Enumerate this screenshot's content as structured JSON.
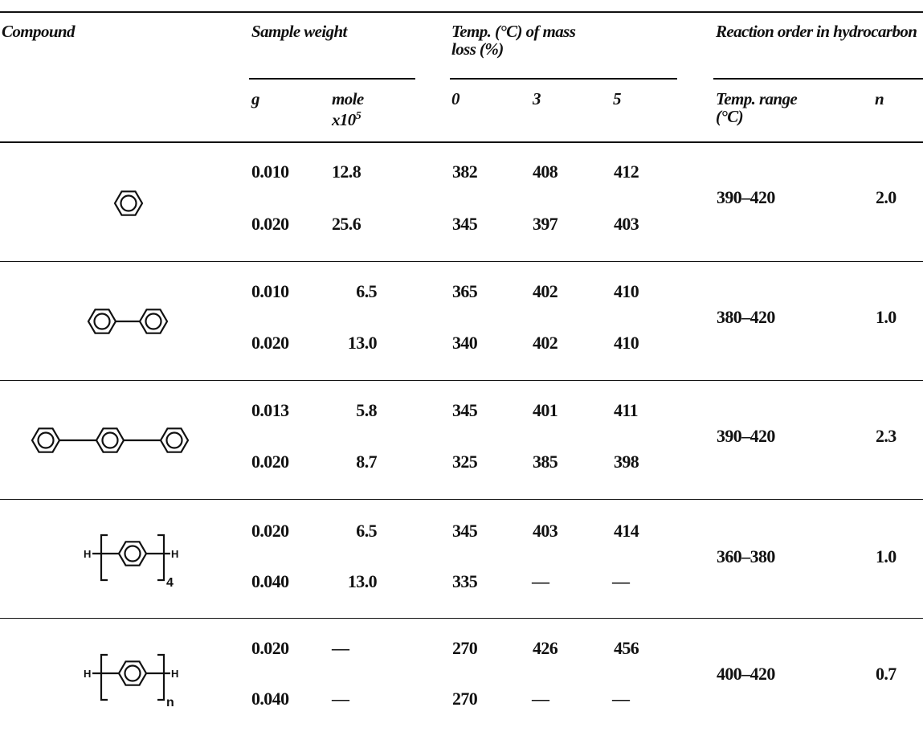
{
  "table": {
    "headers": {
      "compound": "Compound",
      "sample_weight": "Sample weight",
      "temp_mass_loss": "Temp. (°C) of mass loss (%)",
      "reaction_order": "Reaction order in hydrocarbon"
    },
    "subheaders": {
      "g": "g",
      "mole": "mole",
      "mole_scale": "x10",
      "mole_exp": "5",
      "loss_0": "0",
      "loss_3": "3",
      "loss_5": "5",
      "temp_range": "Temp. range (°C)",
      "n": "n"
    },
    "rows": [
      {
        "compound": "benzene",
        "temp_range": "390–420",
        "n": "2.0",
        "samples": [
          {
            "g": "0.010",
            "mole": "12.8",
            "t0": "382",
            "t3": "408",
            "t5": "412"
          },
          {
            "g": "0.020",
            "mole": "25.6",
            "t0": "345",
            "t3": "397",
            "t5": "403"
          }
        ]
      },
      {
        "compound": "biphenyl",
        "temp_range": "380–420",
        "n": "1.0",
        "samples": [
          {
            "g": "0.010",
            "mole": "6.5",
            "t0": "365",
            "t3": "402",
            "t5": "410"
          },
          {
            "g": "0.020",
            "mole": "13.0",
            "t0": "340",
            "t3": "402",
            "t5": "410"
          }
        ]
      },
      {
        "compound": "terphenyl",
        "temp_range": "390–420",
        "n": "2.3",
        "samples": [
          {
            "g": "0.013",
            "mole": "5.8",
            "t0": "345",
            "t3": "401",
            "t5": "411"
          },
          {
            "g": "0.020",
            "mole": "8.7",
            "t0": "325",
            "t3": "385",
            "t5": "398"
          }
        ]
      },
      {
        "compound": "quaterphenyl",
        "temp_range": "360–380",
        "n": "1.0",
        "samples": [
          {
            "g": "0.020",
            "mole": "6.5",
            "t0": "345",
            "t3": "403",
            "t5": "414"
          },
          {
            "g": "0.040",
            "mole": "13.0",
            "t0": "335",
            "t3": "—",
            "t5": "—"
          }
        ]
      },
      {
        "compound": "polyphenyl",
        "temp_range": "400–420",
        "n": "0.7",
        "samples": [
          {
            "g": "0.020",
            "mole": "—",
            "t0": "270",
            "t3": "426",
            "t5": "456"
          },
          {
            "g": "0.040",
            "mole": "—",
            "t0": "270",
            "t3": "—",
            "t5": "—"
          }
        ]
      }
    ],
    "structure_labels": {
      "hydrogen": "H",
      "sub_quater": "4",
      "sub_poly": "n"
    }
  }
}
